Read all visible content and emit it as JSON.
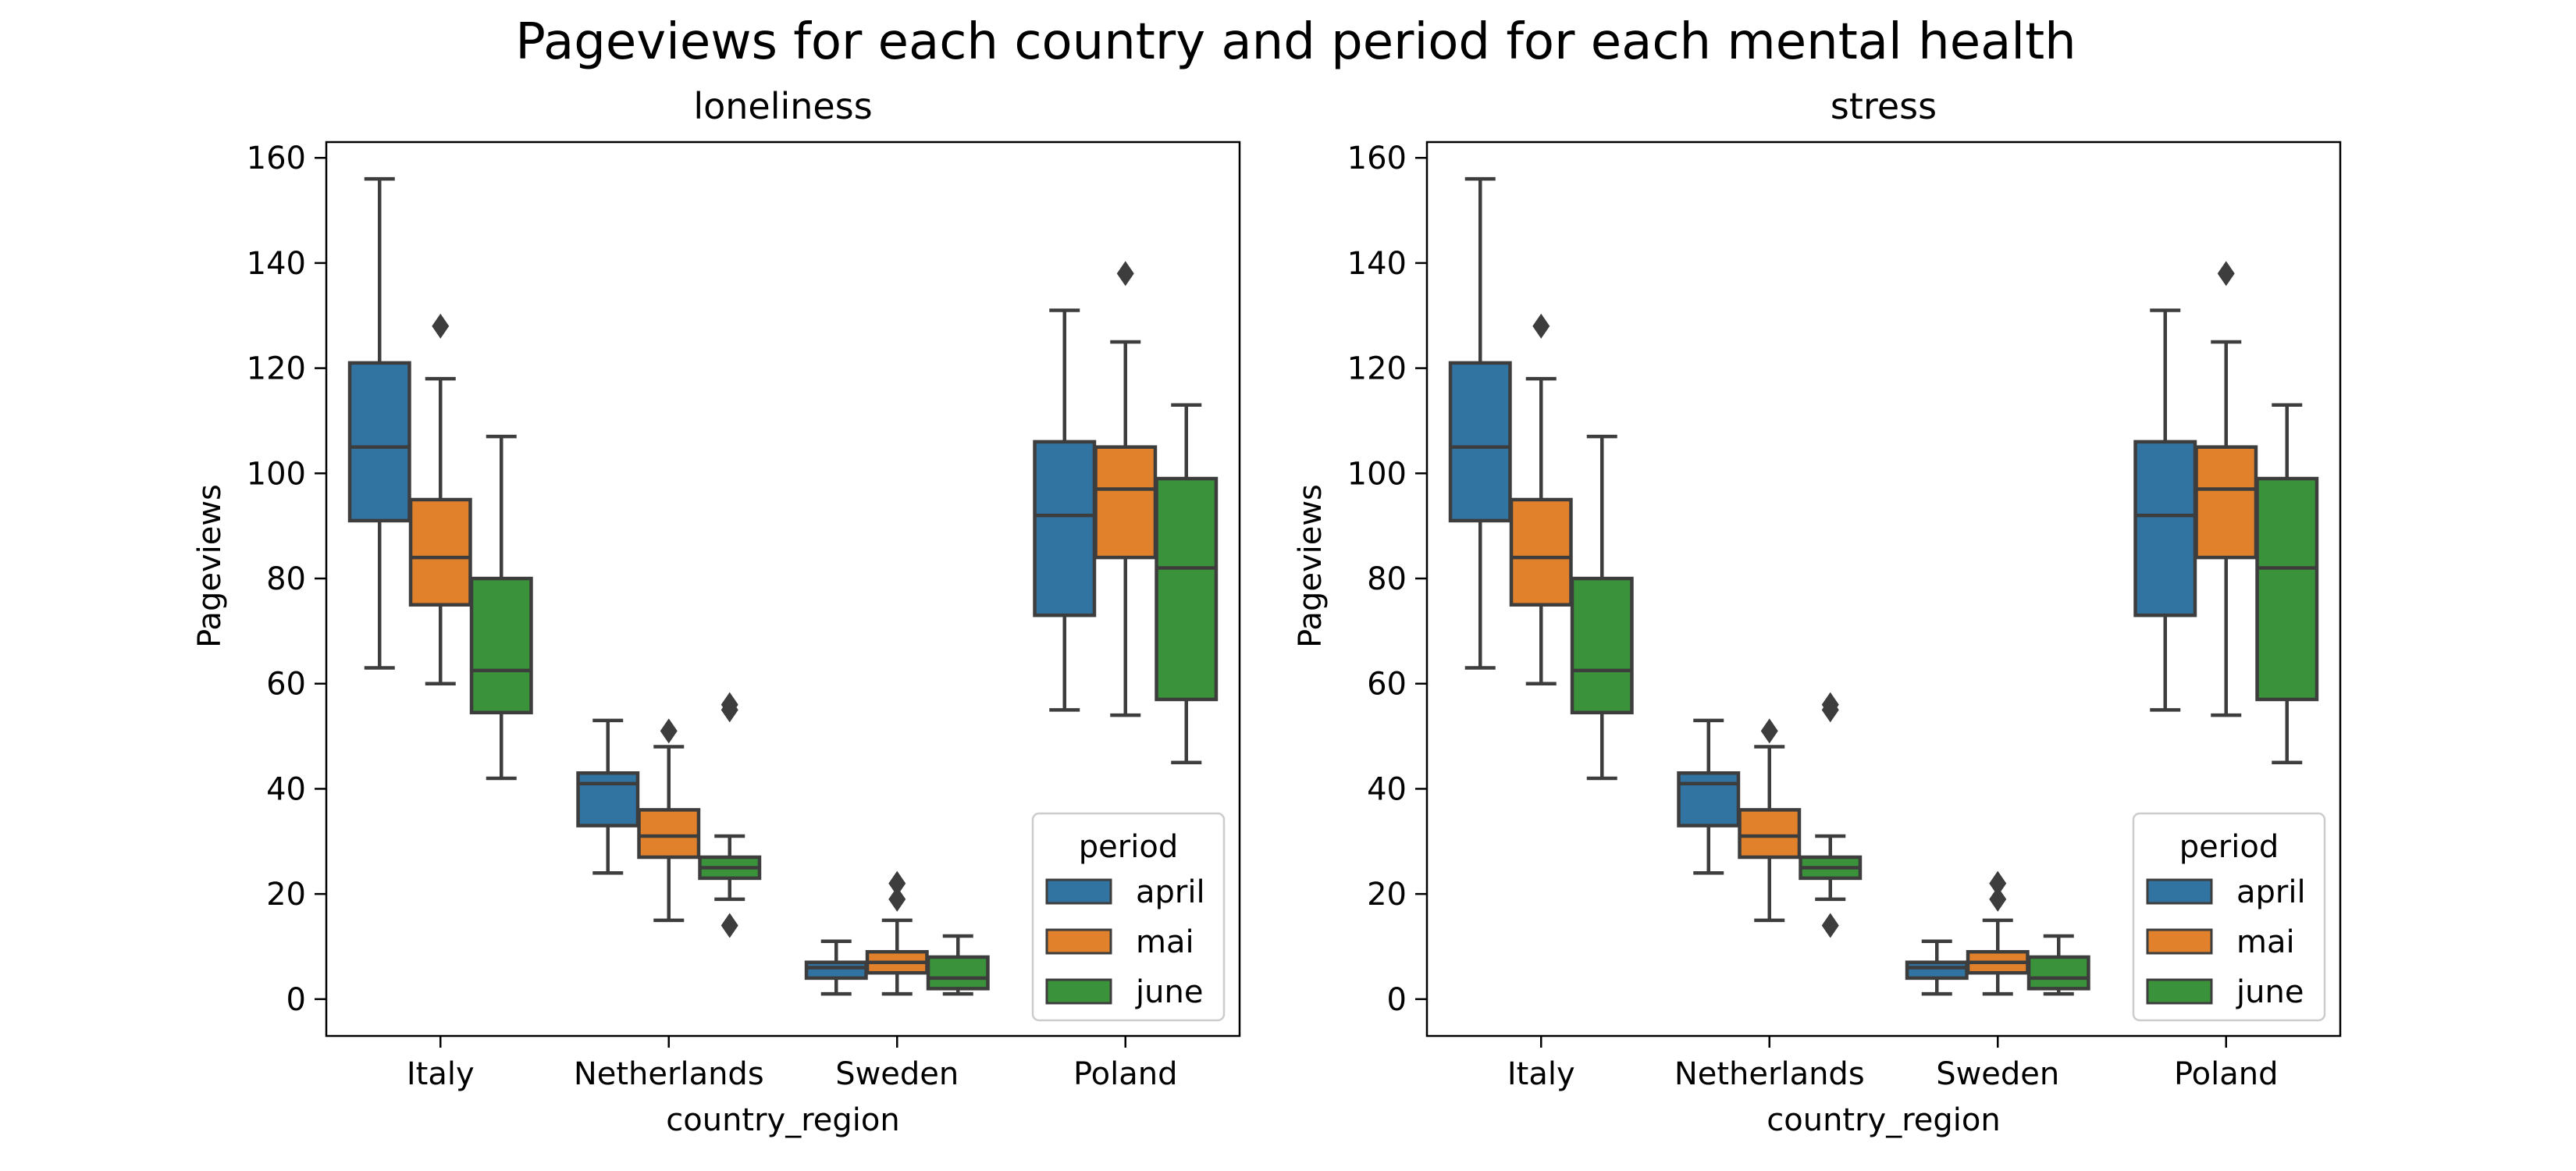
{
  "title": "Pageviews for each country and period for each mental health",
  "palette": {
    "april": "#3274a1",
    "mai": "#e1812c",
    "june": "#3a923a",
    "box_edge": "#3d3d3d"
  },
  "chart_data": [
    {
      "type": "box",
      "title": "loneliness",
      "xlabel": "country_region",
      "ylabel": "Pageviews",
      "categories": [
        "Italy",
        "Netherlands",
        "Sweden",
        "Poland"
      ],
      "ylim": [
        -7,
        163
      ],
      "yticks": [
        0,
        20,
        40,
        60,
        80,
        100,
        120,
        140,
        160
      ],
      "grid": false,
      "legend": {
        "title": "period",
        "placement": "lower-right",
        "entries": [
          "april",
          "mai",
          "june"
        ]
      },
      "series": [
        {
          "name": "april",
          "boxes": [
            {
              "whisker_low": 63,
              "q1": 91,
              "median": 105,
              "q3": 121,
              "whisker_high": 156,
              "outliers": []
            },
            {
              "whisker_low": 24,
              "q1": 33,
              "median": 41,
              "q3": 43,
              "whisker_high": 53,
              "outliers": []
            },
            {
              "whisker_low": 1,
              "q1": 4,
              "median": 6,
              "q3": 7,
              "whisker_high": 11,
              "outliers": []
            },
            {
              "whisker_low": 55,
              "q1": 73,
              "median": 92,
              "q3": 106,
              "whisker_high": 131,
              "outliers": []
            }
          ]
        },
        {
          "name": "mai",
          "boxes": [
            {
              "whisker_low": 60,
              "q1": 75,
              "median": 84,
              "q3": 95,
              "whisker_high": 118,
              "outliers": [
                128
              ]
            },
            {
              "whisker_low": 15,
              "q1": 27,
              "median": 31,
              "q3": 36,
              "whisker_high": 48,
              "outliers": [
                51
              ]
            },
            {
              "whisker_low": 1,
              "q1": 5,
              "median": 7,
              "q3": 9,
              "whisker_high": 15,
              "outliers": [
                19,
                22
              ]
            },
            {
              "whisker_low": 54,
              "q1": 84,
              "median": 97,
              "q3": 105,
              "whisker_high": 125,
              "outliers": [
                138
              ]
            }
          ]
        },
        {
          "name": "june",
          "boxes": [
            {
              "whisker_low": 42,
              "q1": 54.5,
              "median": 62.5,
              "q3": 80,
              "whisker_high": 107,
              "outliers": []
            },
            {
              "whisker_low": 19,
              "q1": 23,
              "median": 25,
              "q3": 27,
              "whisker_high": 31,
              "outliers": [
                14,
                55,
                56
              ]
            },
            {
              "whisker_low": 1,
              "q1": 2,
              "median": 4,
              "q3": 8,
              "whisker_high": 12,
              "outliers": []
            },
            {
              "whisker_low": 45,
              "q1": 57,
              "median": 82,
              "q3": 99,
              "whisker_high": 113,
              "outliers": []
            }
          ]
        }
      ]
    },
    {
      "type": "box",
      "title": "stress",
      "xlabel": "country_region",
      "ylabel": "Pageviews",
      "categories": [
        "Italy",
        "Netherlands",
        "Sweden",
        "Poland"
      ],
      "ylim": [
        -7,
        163
      ],
      "yticks": [
        0,
        20,
        40,
        60,
        80,
        100,
        120,
        140,
        160
      ],
      "grid": false,
      "legend": {
        "title": "period",
        "placement": "lower-right",
        "entries": [
          "april",
          "mai",
          "june"
        ]
      },
      "series": [
        {
          "name": "april",
          "boxes": [
            {
              "whisker_low": 63,
              "q1": 91,
              "median": 105,
              "q3": 121,
              "whisker_high": 156,
              "outliers": []
            },
            {
              "whisker_low": 24,
              "q1": 33,
              "median": 41,
              "q3": 43,
              "whisker_high": 53,
              "outliers": []
            },
            {
              "whisker_low": 1,
              "q1": 4,
              "median": 6,
              "q3": 7,
              "whisker_high": 11,
              "outliers": []
            },
            {
              "whisker_low": 55,
              "q1": 73,
              "median": 92,
              "q3": 106,
              "whisker_high": 131,
              "outliers": []
            }
          ]
        },
        {
          "name": "mai",
          "boxes": [
            {
              "whisker_low": 60,
              "q1": 75,
              "median": 84,
              "q3": 95,
              "whisker_high": 118,
              "outliers": [
                128
              ]
            },
            {
              "whisker_low": 15,
              "q1": 27,
              "median": 31,
              "q3": 36,
              "whisker_high": 48,
              "outliers": [
                51
              ]
            },
            {
              "whisker_low": 1,
              "q1": 5,
              "median": 7,
              "q3": 9,
              "whisker_high": 15,
              "outliers": [
                19,
                22
              ]
            },
            {
              "whisker_low": 54,
              "q1": 84,
              "median": 97,
              "q3": 105,
              "whisker_high": 125,
              "outliers": [
                138
              ]
            }
          ]
        },
        {
          "name": "june",
          "boxes": [
            {
              "whisker_low": 42,
              "q1": 54.5,
              "median": 62.5,
              "q3": 80,
              "whisker_high": 107,
              "outliers": []
            },
            {
              "whisker_low": 19,
              "q1": 23,
              "median": 25,
              "q3": 27,
              "whisker_high": 31,
              "outliers": [
                14,
                55,
                56
              ]
            },
            {
              "whisker_low": 1,
              "q1": 2,
              "median": 4,
              "q3": 8,
              "whisker_high": 12,
              "outliers": []
            },
            {
              "whisker_low": 45,
              "q1": 57,
              "median": 82,
              "q3": 99,
              "whisker_high": 113,
              "outliers": []
            }
          ]
        }
      ]
    }
  ]
}
